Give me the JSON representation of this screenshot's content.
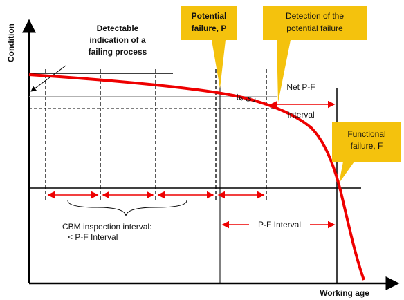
{
  "y_axis_label": "Condition",
  "x_axis_label": "Working age",
  "detectable_indication": [
    "Detectable",
    "indication of a",
    "failing process"
  ],
  "potential_failure": [
    "Potential",
    "failure, P"
  ],
  "detection": [
    "Detection of the",
    "potential failure"
  ],
  "net_pf_interval": [
    "Net P-F",
    "Interval"
  ],
  "functional_failure": [
    "Functional",
    "failure, F"
  ],
  "cbm_interval": [
    "CBM inspection interval:",
    "< P-F Interval"
  ],
  "pf_interval": "P-F Interval",
  "fragment_text": "ری ها"
}
